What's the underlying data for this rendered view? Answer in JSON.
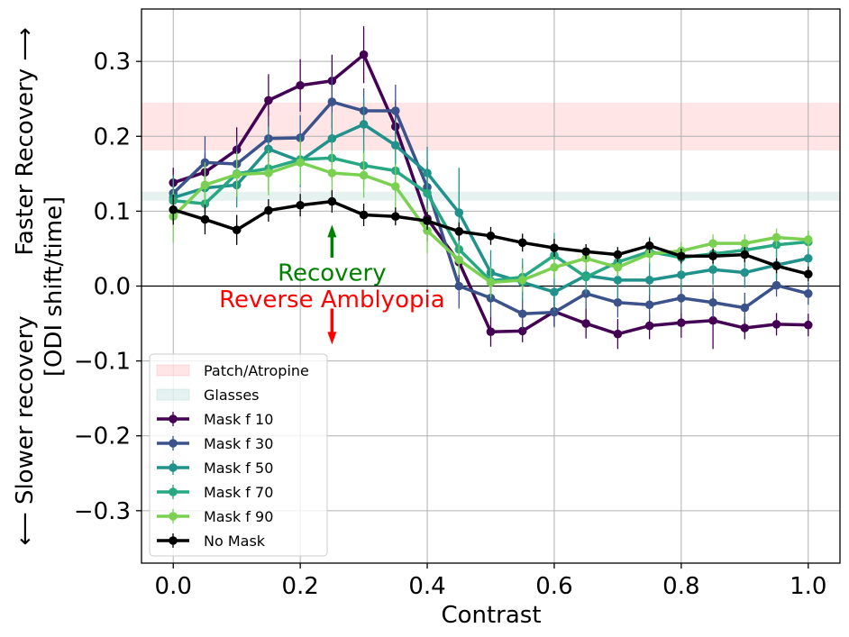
{
  "chart_data": {
    "type": "line",
    "xlabel": "Contrast",
    "ylabel_top": "Faster Recovery ⟶",
    "ylabel_bottom": "⟵ Slower recovery",
    "ylabel_sub": "[ODI shift/time]",
    "xlim": [
      -0.05,
      1.05
    ],
    "ylim": [
      -0.37,
      0.37
    ],
    "xticks": [
      0.0,
      0.2,
      0.4,
      0.6,
      0.8,
      1.0
    ],
    "xtick_labels": [
      "0.0",
      "0.2",
      "0.4",
      "0.6",
      "0.8",
      "1.0"
    ],
    "yticks": [
      -0.3,
      -0.2,
      -0.1,
      0.0,
      0.1,
      0.2,
      0.3
    ],
    "ytick_labels": [
      "−0.3",
      "−0.2",
      "−0.1",
      "0.0",
      "0.1",
      "0.2",
      "0.3"
    ],
    "grid": true,
    "legend_position": "lower-left",
    "bands": [
      {
        "name": "Patch/Atropine",
        "y0": 0.181,
        "y1": 0.245,
        "color": "#ff0000",
        "opacity": 0.1
      },
      {
        "name": "Glasses",
        "y0": 0.114,
        "y1": 0.126,
        "color": "#7fbfb6",
        "opacity": 0.2
      }
    ],
    "annotations": [
      {
        "text": "Recovery",
        "x": 0.25,
        "y": 0.016,
        "color": "#008000",
        "arrow": "up",
        "arrow_from": 0.038,
        "arrow_to": 0.082
      },
      {
        "text": "Reverse Amblyopia",
        "x": 0.25,
        "y": -0.019,
        "color": "#ff0000",
        "arrow": "down",
        "arrow_from": -0.03,
        "arrow_to": -0.078
      }
    ],
    "x": [
      0.0,
      0.05,
      0.1,
      0.15,
      0.2,
      0.25,
      0.3,
      0.35,
      0.4,
      0.45,
      0.5,
      0.55,
      0.6,
      0.65,
      0.7,
      0.75,
      0.8,
      0.85,
      0.9,
      0.95,
      1.0
    ],
    "series": [
      {
        "name": "Mask f 10",
        "color": "#440154",
        "values": [
          0.138,
          0.152,
          0.182,
          0.248,
          0.268,
          0.274,
          0.309,
          0.213,
          0.09,
          0.032,
          -0.061,
          -0.06,
          -0.034,
          -0.05,
          -0.064,
          -0.053,
          -0.049,
          -0.046,
          -0.056,
          -0.051,
          -0.052
        ],
        "errors": [
          0.02,
          0.025,
          0.03,
          0.035,
          0.035,
          0.035,
          0.038,
          0.035,
          0.03,
          0.03,
          0.02,
          0.015,
          0.02,
          0.02,
          0.02,
          0.018,
          0.02,
          0.038,
          0.015,
          0.015,
          0.015
        ]
      },
      {
        "name": "Mask f 30",
        "color": "#3b528b",
        "values": [
          0.124,
          0.165,
          0.163,
          0.197,
          0.198,
          0.246,
          0.234,
          0.234,
          0.132,
          0.0,
          -0.016,
          -0.037,
          -0.035,
          -0.01,
          -0.022,
          -0.025,
          -0.016,
          -0.022,
          -0.029,
          0.001,
          -0.01
        ],
        "errors": [
          0.025,
          0.035,
          0.03,
          0.03,
          0.03,
          0.035,
          0.03,
          0.035,
          0.035,
          0.03,
          0.025,
          0.02,
          0.02,
          0.02,
          0.02,
          0.02,
          0.02,
          0.02,
          0.02,
          0.015,
          0.015
        ]
      },
      {
        "name": "Mask f 50",
        "color": "#21918c",
        "values": [
          0.118,
          0.131,
          0.135,
          0.183,
          0.167,
          0.197,
          0.216,
          0.188,
          0.151,
          0.098,
          0.018,
          0.005,
          -0.008,
          0.014,
          0.008,
          0.008,
          0.015,
          0.022,
          0.018,
          0.028,
          0.037
        ],
        "errors": [
          0.03,
          0.035,
          0.03,
          0.03,
          0.035,
          0.035,
          0.035,
          0.035,
          0.035,
          0.06,
          0.03,
          0.025,
          0.025,
          0.025,
          0.025,
          0.02,
          0.02,
          0.02,
          0.02,
          0.02,
          0.02
        ]
      },
      {
        "name": "Mask f 70",
        "color": "#27a883",
        "values": [
          0.114,
          0.11,
          0.15,
          0.157,
          0.169,
          0.171,
          0.161,
          0.154,
          0.124,
          0.049,
          0.007,
          0.012,
          0.041,
          0.012,
          0.032,
          0.046,
          0.038,
          0.043,
          0.048,
          0.055,
          0.059
        ],
        "errors": [
          0.03,
          0.03,
          0.03,
          0.03,
          0.03,
          0.03,
          0.03,
          0.03,
          0.03,
          0.03,
          0.025,
          0.025,
          0.03,
          0.02,
          0.02,
          0.02,
          0.02,
          0.02,
          0.015,
          0.015,
          0.015
        ]
      },
      {
        "name": "Mask f 90",
        "color": "#7ad151",
        "values": [
          0.093,
          0.135,
          0.149,
          0.151,
          0.165,
          0.151,
          0.148,
          0.133,
          0.074,
          0.035,
          0.005,
          0.008,
          0.025,
          0.037,
          0.025,
          0.043,
          0.047,
          0.057,
          0.057,
          0.065,
          0.062
        ],
        "errors": [
          0.035,
          0.03,
          0.03,
          0.03,
          0.03,
          0.03,
          0.03,
          0.03,
          0.03,
          0.02,
          0.02,
          0.015,
          0.015,
          0.015,
          0.012,
          0.012,
          0.012,
          0.012,
          0.012,
          0.012,
          0.012
        ]
      },
      {
        "name": "No Mask",
        "color": "#000000",
        "values": [
          0.102,
          0.089,
          0.075,
          0.101,
          0.108,
          0.113,
          0.095,
          0.093,
          0.087,
          0.073,
          0.067,
          0.058,
          0.051,
          0.046,
          0.042,
          0.054,
          0.04,
          0.04,
          0.042,
          0.027,
          0.016
        ],
        "errors": [
          0.02,
          0.02,
          0.02,
          0.015,
          0.015,
          0.015,
          0.015,
          0.012,
          0.012,
          0.012,
          0.012,
          0.012,
          0.012,
          0.01,
          0.01,
          0.01,
          0.01,
          0.01,
          0.01,
          0.01,
          0.01
        ]
      }
    ]
  }
}
